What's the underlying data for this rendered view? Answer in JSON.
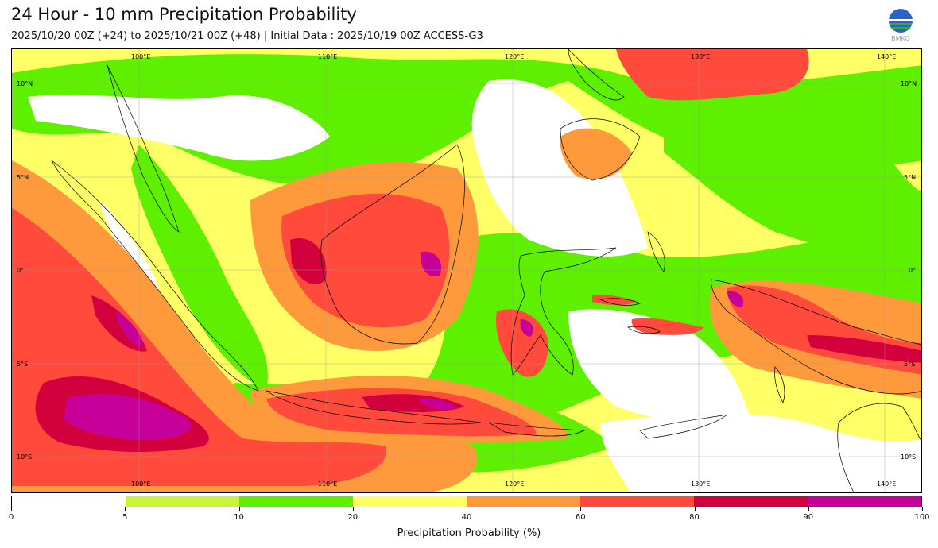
{
  "header": {
    "title": "24 Hour - 10 mm Precipitation Probability",
    "subtitle": "2025/10/20 00Z (+24) to 2025/10/21 00Z (+48) | Initial Data : 2025/10/19 00Z ACCESS-G3",
    "logo_text": "BMKG"
  },
  "map": {
    "lon_labels": [
      "100°E",
      "110°E",
      "120°E",
      "130°E",
      "140°E"
    ],
    "lat_labels_left": [
      "10°N",
      "5°N",
      "0°",
      "5°S",
      "10°S"
    ],
    "lat_labels_right": [
      "10°N",
      "5°N",
      "0°",
      "5°S",
      "10°S"
    ],
    "colors": {
      "c5": "#c8f53c",
      "c10": "#5ef000",
      "c20": "#ffff66",
      "c40": "#ff9a3c",
      "c60": "#ff4a3c",
      "c80": "#d2003c",
      "c90": "#c8009a",
      "land_line": "#000000"
    }
  },
  "colorbar": {
    "ticks": [
      "0",
      "5",
      "10",
      "20",
      "40",
      "60",
      "80",
      "90",
      "100"
    ],
    "bins": [
      {
        "range": "0-5",
        "color": "#ffffff"
      },
      {
        "range": "5-10",
        "color": "#c8f53c"
      },
      {
        "range": "10-20",
        "color": "#5ef000"
      },
      {
        "range": "20-40",
        "color": "#ffff66"
      },
      {
        "range": "40-60",
        "color": "#ff9a3c"
      },
      {
        "range": "60-80",
        "color": "#ff4a3c"
      },
      {
        "range": "80-90",
        "color": "#d2003c"
      },
      {
        "range": "90-100",
        "color": "#c8009a"
      }
    ],
    "label": "Precipitation Probability (%)"
  }
}
